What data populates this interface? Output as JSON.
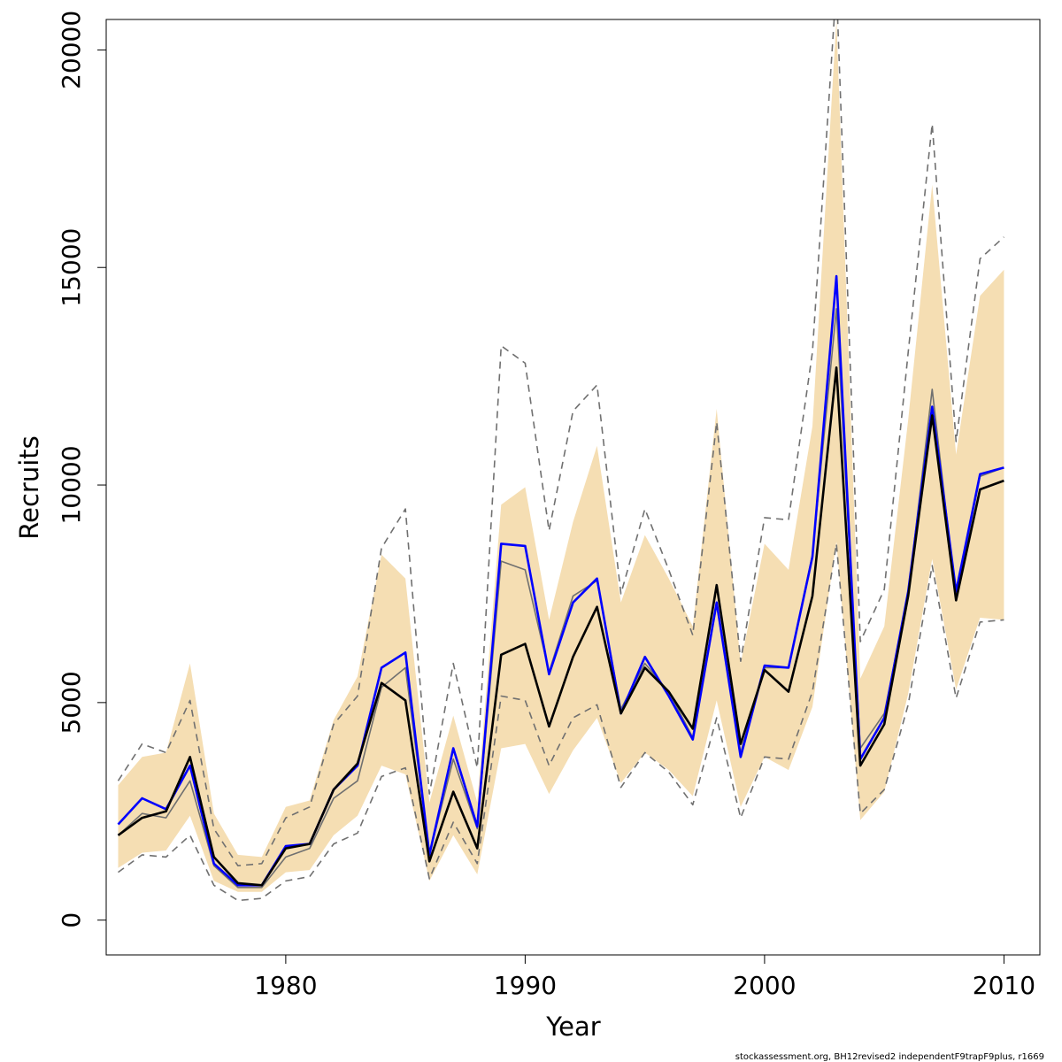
{
  "chart_data": {
    "type": "line",
    "xlabel": "Year",
    "ylabel": "Recruits",
    "xlim": [
      1972.5,
      2011.5
    ],
    "ylim": [
      -800,
      20700
    ],
    "xticks": [
      1980,
      1990,
      2000,
      2010
    ],
    "yticks": [
      0,
      5000,
      10000,
      15000,
      20000
    ],
    "x": [
      1973,
      1974,
      1975,
      1976,
      1977,
      1978,
      1979,
      1980,
      1981,
      1982,
      1983,
      1984,
      1985,
      1986,
      1987,
      1988,
      1989,
      1990,
      1991,
      1992,
      1993,
      1994,
      1995,
      1996,
      1997,
      1998,
      1999,
      2000,
      2001,
      2002,
      2003,
      2004,
      2005,
      2006,
      2007,
      2008,
      2009,
      2010
    ],
    "band": {
      "lower": [
        1200,
        1550,
        1600,
        2400,
        900,
        650,
        650,
        1100,
        1150,
        1950,
        2400,
        3550,
        3350,
        900,
        1950,
        1050,
        3950,
        4050,
        2900,
        3900,
        4650,
        3150,
        3850,
        3450,
        2850,
        5050,
        2600,
        3750,
        3450,
        4900,
        8700,
        2300,
        2950,
        5200,
        8300,
        5300,
        6950,
        6900
      ],
      "upper": [
        3100,
        3750,
        3850,
        5900,
        2450,
        1500,
        1450,
        2600,
        2750,
        4600,
        5600,
        8400,
        7850,
        2700,
        4700,
        2700,
        9550,
        9950,
        6900,
        9150,
        10900,
        7300,
        8850,
        7850,
        6750,
        11750,
        5900,
        8650,
        8050,
        11350,
        20700,
        5550,
        6750,
        11500,
        16900,
        10700,
        14350,
        14950
      ]
    },
    "series": [
      {
        "style": "black-solid",
        "color": "#000000",
        "values": [
          1950,
          2350,
          2500,
          3750,
          1450,
          850,
          800,
          1650,
          1750,
          3000,
          3600,
          5450,
          5050,
          1350,
          2950,
          1650,
          6100,
          6350,
          4450,
          6050,
          7200,
          4750,
          5800,
          5250,
          4400,
          7700,
          4050,
          5750,
          5250,
          7450,
          12700,
          3550,
          4500,
          7450,
          11600,
          7350,
          9900,
          10100
        ]
      },
      {
        "style": "grey-solid",
        "color": "#707070",
        "values": [
          1950,
          2450,
          2350,
          3200,
          1250,
          750,
          750,
          1450,
          1650,
          2800,
          3200,
          5350,
          5800,
          1500,
          3700,
          2100,
          8250,
          8050,
          5700,
          7450,
          7800,
          4850,
          5900,
          5250,
          4200,
          7250,
          3850,
          5800,
          5800,
          8400,
          14050,
          3950,
          4750,
          7500,
          12200,
          7400,
          10200,
          10400
        ]
      },
      {
        "style": "blue-solid",
        "color": "#0000ff",
        "values": [
          2200,
          2800,
          2550,
          3550,
          1300,
          800,
          800,
          1700,
          1750,
          3000,
          3550,
          5800,
          6150,
          1500,
          3950,
          2150,
          8650,
          8600,
          5650,
          7300,
          7850,
          4750,
          6050,
          5150,
          4150,
          7300,
          3750,
          5850,
          5800,
          8350,
          14800,
          3700,
          4650,
          7550,
          11800,
          7550,
          10250,
          10400
        ]
      },
      {
        "style": "grey-dashed-upper",
        "color": "#707070",
        "values": [
          3200,
          4050,
          3850,
          5050,
          2100,
          1250,
          1300,
          2350,
          2600,
          4500,
          5150,
          8550,
          9450,
          2900,
          5900,
          3500,
          13200,
          12800,
          8950,
          11700,
          12300,
          7500,
          9450,
          8050,
          6550,
          11450,
          5950,
          9250,
          9200,
          13050,
          21500,
          6400,
          7600,
          13050,
          18300,
          11000,
          15200,
          15700
        ]
      },
      {
        "style": "grey-dashed-lower",
        "color": "#707070",
        "values": [
          1100,
          1500,
          1450,
          1950,
          800,
          450,
          500,
          900,
          1000,
          1750,
          2000,
          3300,
          3500,
          950,
          2250,
          1300,
          5150,
          5050,
          3550,
          4650,
          4950,
          3050,
          3850,
          3400,
          2650,
          4650,
          2350,
          3750,
          3700,
          5250,
          8650,
          2450,
          3000,
          4950,
          8150,
          5100,
          6850,
          6900
        ]
      }
    ],
    "band_color": "#f5deb3",
    "grid": false,
    "legend": "none"
  },
  "footnote": "stockassessment.org, BH12revised2  independentF9trapF9plus, r1669"
}
